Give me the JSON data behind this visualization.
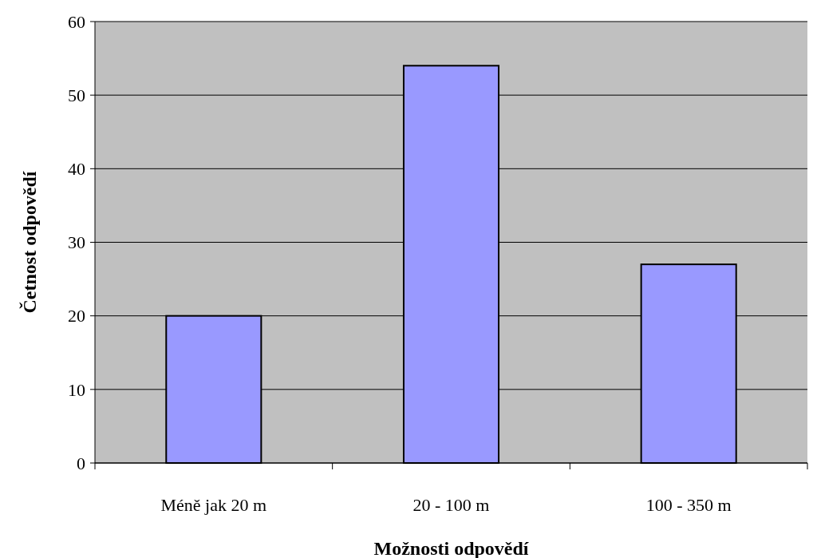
{
  "chart_data": {
    "type": "bar",
    "xlabel": "Možnosti odpovědí",
    "ylabel": "Četnost odpovědí",
    "categories": [
      "Méně jak 20 m",
      "20 - 100 m",
      "100 - 350 m"
    ],
    "values": [
      20,
      54,
      27
    ],
    "color": "#9999ff",
    "ylim": [
      0,
      60
    ],
    "yticks": [
      0,
      10,
      20,
      30,
      40,
      50,
      60
    ],
    "grid": "y"
  }
}
